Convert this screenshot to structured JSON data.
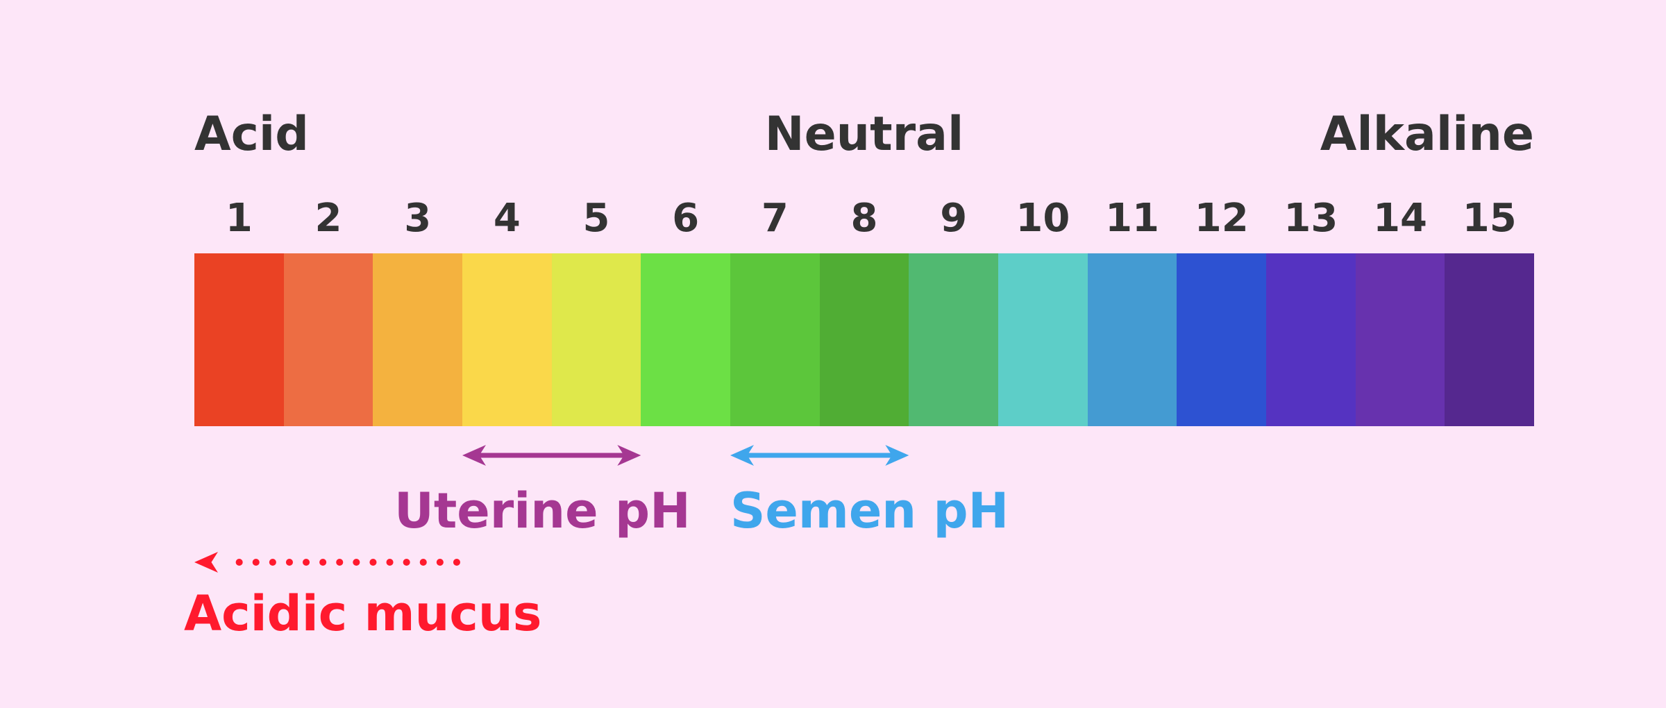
{
  "scale": {
    "left_label": "Acid",
    "center_label": "Neutral",
    "right_label": "Alkaline",
    "numbers": [
      "1",
      "2",
      "3",
      "4",
      "5",
      "6",
      "7",
      "8",
      "9",
      "10",
      "11",
      "12",
      "13",
      "14",
      "15"
    ],
    "colors": [
      "#ea4224",
      "#ed6d43",
      "#f4b23f",
      "#fad84a",
      "#dfe84b",
      "#6ce045",
      "#5cc63b",
      "#50ad34",
      "#51b971",
      "#5dcec8",
      "#449bd2",
      "#2d52d2",
      "#5533c1",
      "#6732ae",
      "#55288f"
    ]
  },
  "ranges": {
    "uterine": {
      "label": "Uterine pH",
      "color": "#a53792",
      "from": 4,
      "to": 5
    },
    "semen": {
      "label": "Semen pH",
      "color": "#3fa6ec",
      "from": 7,
      "to": 8
    },
    "mucus": {
      "label": "Acidic mucus",
      "color": "#ff1a2e",
      "from": 4,
      "to": 1
    }
  }
}
